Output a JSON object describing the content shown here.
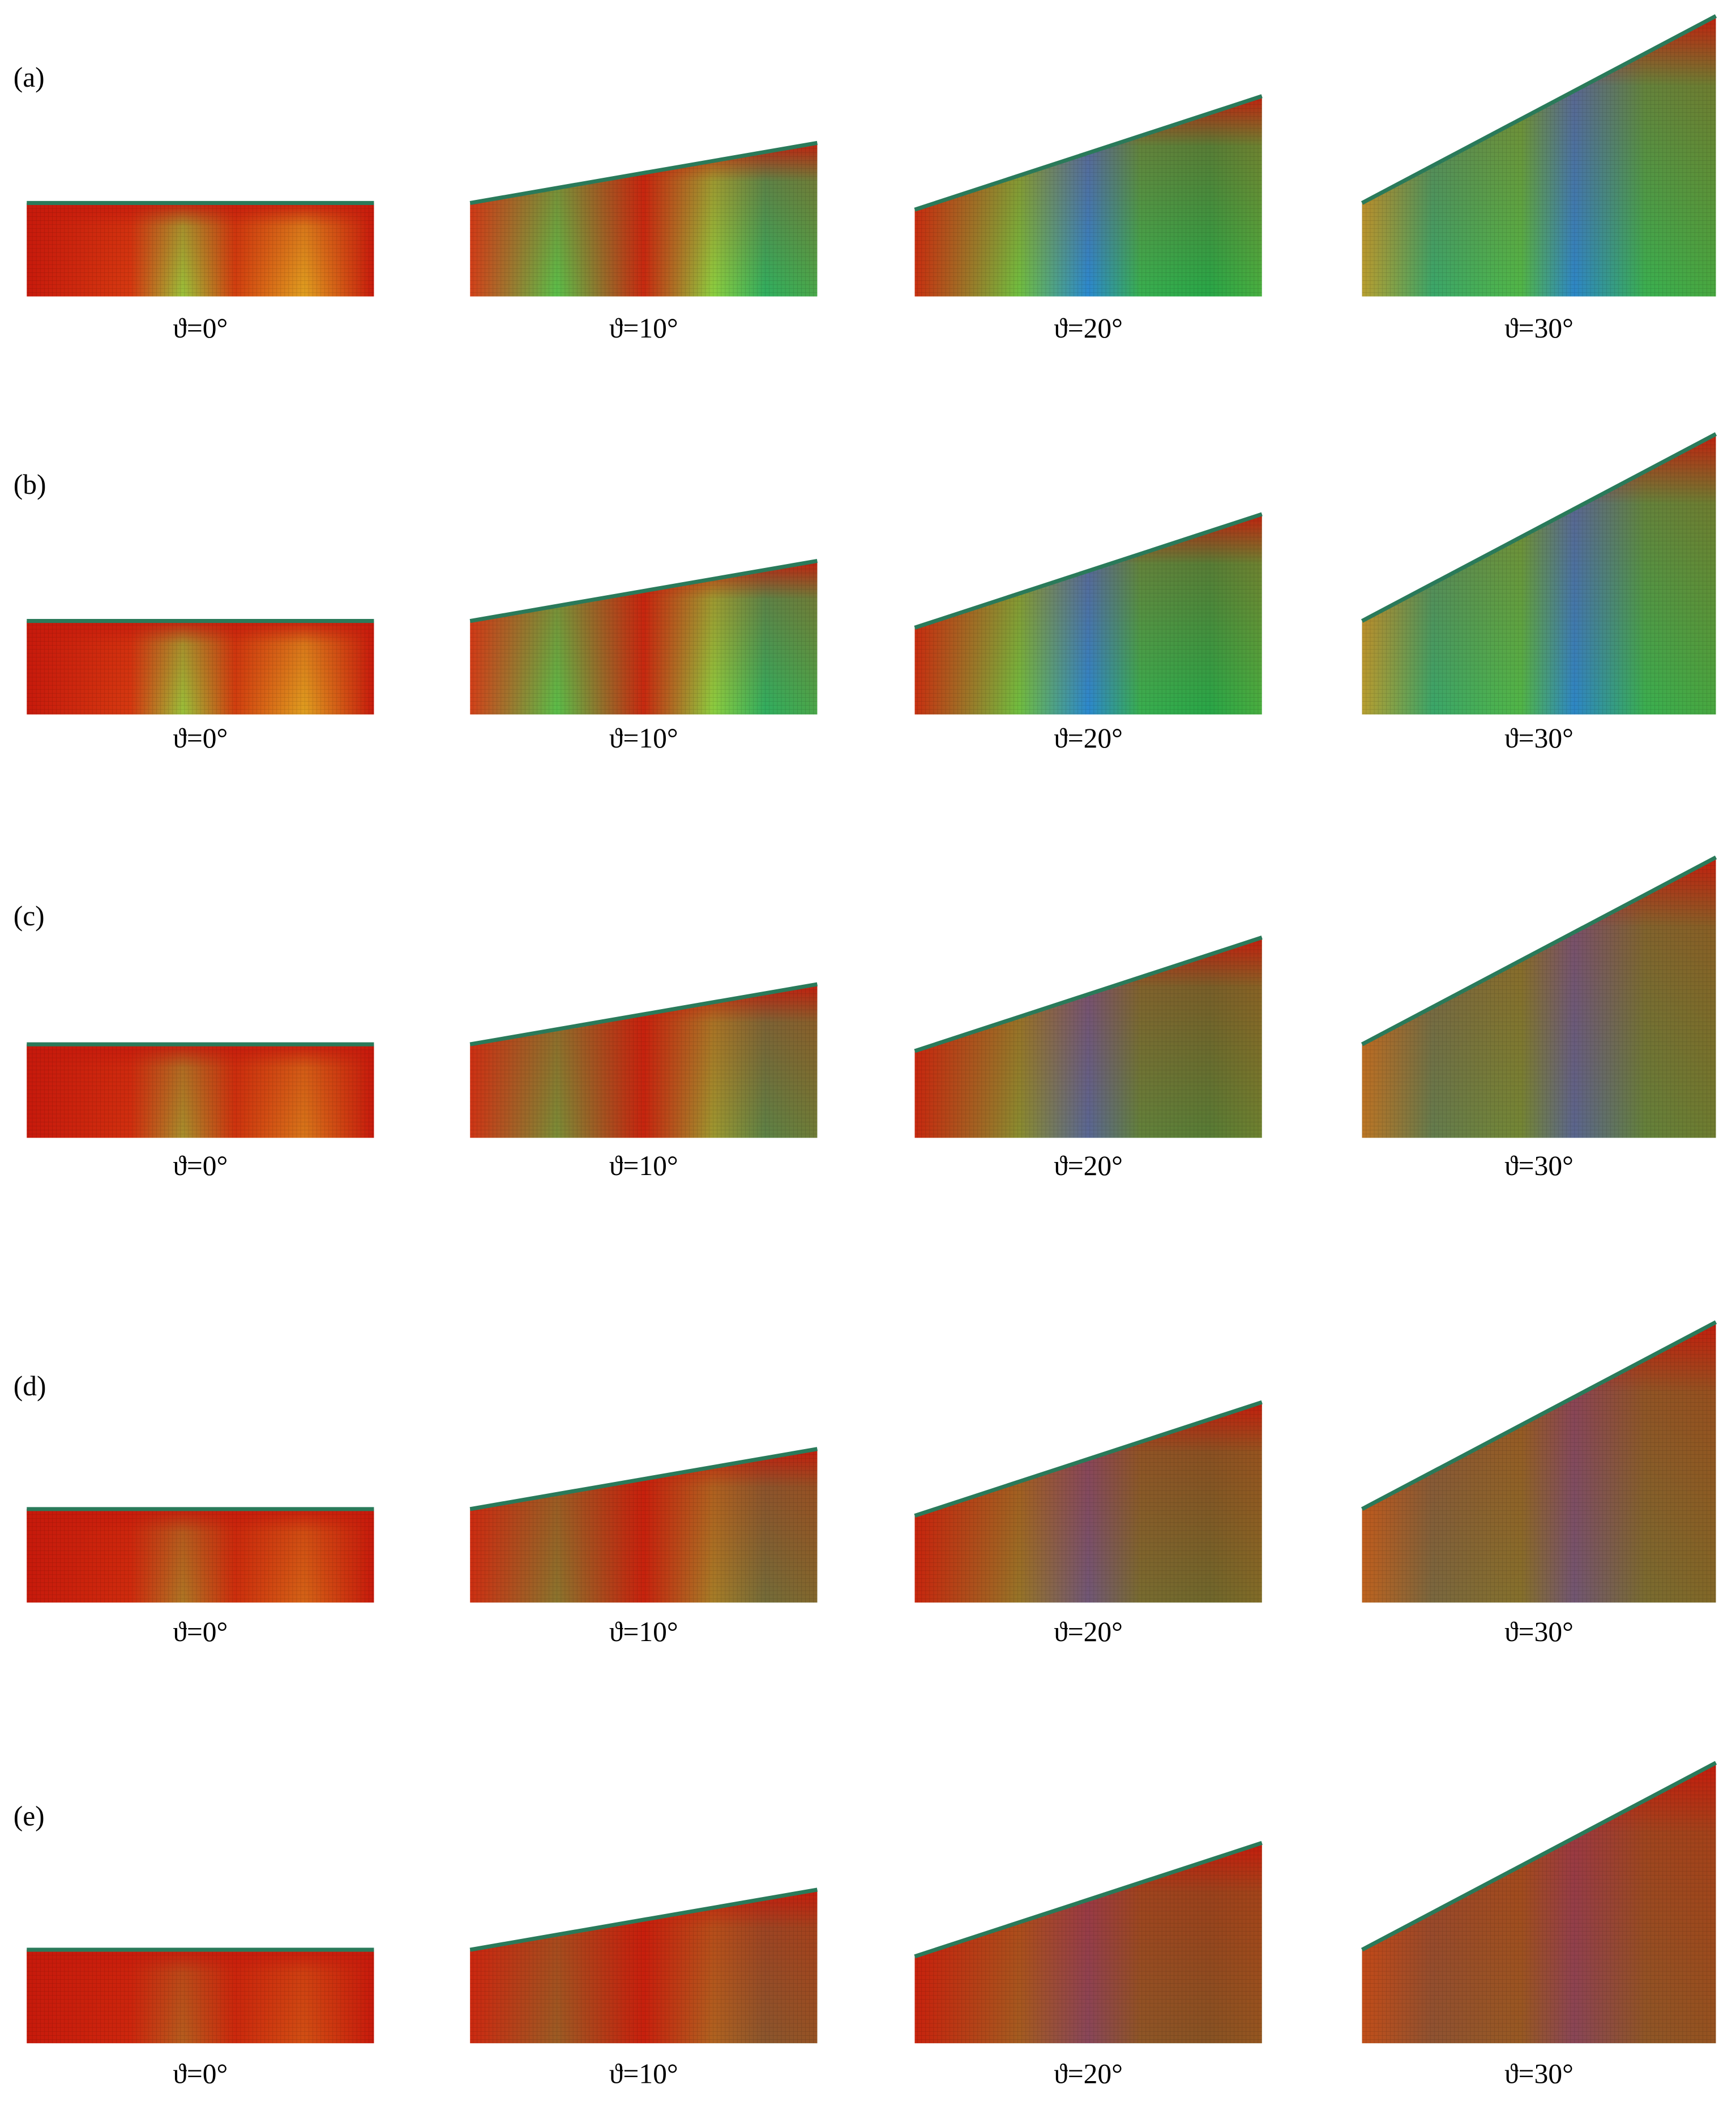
{
  "rows": [
    {
      "label": "(a)",
      "panels": [
        {
          "caption": "ϑ=0°"
        },
        {
          "caption": "ϑ=10°"
        },
        {
          "caption": "ϑ=20°"
        },
        {
          "caption": "ϑ=30°"
        }
      ]
    },
    {
      "label": "(b)",
      "panels": [
        {
          "caption": "ϑ=0°"
        },
        {
          "caption": "ϑ=10°"
        },
        {
          "caption": "ϑ=20°"
        },
        {
          "caption": "ϑ=30°"
        }
      ]
    },
    {
      "label": "(c)",
      "panels": [
        {
          "caption": "ϑ=0°"
        },
        {
          "caption": "ϑ=10°"
        },
        {
          "caption": "ϑ=20°"
        },
        {
          "caption": "ϑ=30°"
        }
      ]
    },
    {
      "label": "(d)",
      "panels": [
        {
          "caption": "ϑ=0°"
        },
        {
          "caption": "ϑ=10°"
        },
        {
          "caption": "ϑ=20°"
        },
        {
          "caption": "ϑ=30°"
        }
      ]
    },
    {
      "label": "(e)",
      "panels": [
        {
          "caption": "ϑ=0°"
        },
        {
          "caption": "ϑ=10°"
        },
        {
          "caption": "ϑ=20°"
        },
        {
          "caption": "ϑ=30°"
        }
      ]
    }
  ]
}
